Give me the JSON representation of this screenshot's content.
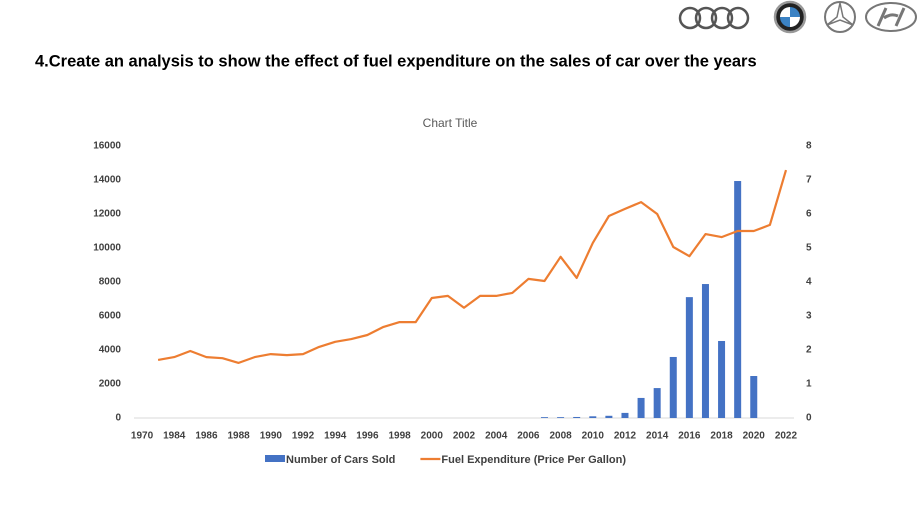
{
  "header": {
    "title": "4.Create an analysis to show the effect of fuel expenditure on the sales of car over the years"
  },
  "chart_data": {
    "type": "bar-line",
    "title": "Chart Title",
    "categories": [
      "1970",
      null,
      "1984",
      null,
      "1986",
      null,
      "1988",
      null,
      "1990",
      null,
      "1992",
      null,
      "1994",
      null,
      "1996",
      null,
      "1998",
      null,
      "2000",
      null,
      "2002",
      null,
      "2004",
      null,
      "2006",
      null,
      "2008",
      null,
      "2010",
      null,
      "2012",
      null,
      "2014",
      null,
      "2016",
      null,
      "2018",
      null,
      "2020",
      null,
      "2022"
    ],
    "series": [
      {
        "name": "Number of Cars Sold",
        "type": "bar",
        "color": "#4472c4",
        "values": [
          null,
          null,
          null,
          null,
          null,
          null,
          null,
          null,
          null,
          null,
          null,
          null,
          null,
          null,
          null,
          null,
          null,
          null,
          null,
          null,
          null,
          null,
          null,
          null,
          null,
          50,
          50,
          60,
          100,
          130,
          300,
          1180,
          1760,
          3590,
          7110,
          7880,
          4530,
          13940,
          2470,
          null,
          null
        ]
      },
      {
        "name": "Fuel Expenditure (Price Per Gallon)",
        "type": "line",
        "color": "#ed7d31",
        "axis": "y2",
        "values": [
          null,
          1.71,
          1.79,
          1.97,
          1.79,
          1.76,
          1.62,
          1.79,
          1.88,
          1.85,
          1.88,
          2.09,
          2.24,
          2.32,
          2.44,
          2.68,
          2.82,
          2.82,
          3.53,
          3.59,
          3.24,
          3.59,
          3.59,
          3.68,
          4.09,
          4.03,
          4.74,
          4.12,
          5.15,
          5.94,
          6.15,
          6.35,
          6.0,
          5.03,
          4.76,
          5.41,
          5.32,
          5.5,
          5.5,
          5.68,
          7.29
        ]
      }
    ],
    "ylim": [
      0,
      16000
    ],
    "yticks": [
      0,
      2000,
      4000,
      6000,
      8000,
      10000,
      12000,
      14000,
      16000
    ],
    "y2lim": [
      0,
      8
    ],
    "y2ticks": [
      0,
      1,
      2,
      3,
      4,
      5,
      6,
      7,
      8
    ],
    "legend": "bottom",
    "grid": false
  }
}
